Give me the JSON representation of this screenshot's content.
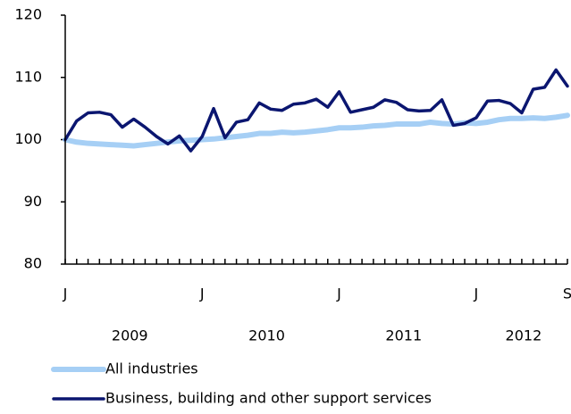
{
  "chart_data": {
    "type": "line",
    "categories": [
      "J",
      null,
      null,
      null,
      null,
      null,
      null,
      null,
      null,
      null,
      null,
      null,
      "J",
      null,
      null,
      null,
      null,
      null,
      null,
      null,
      null,
      null,
      null,
      null,
      "J",
      null,
      null,
      null,
      null,
      null,
      null,
      null,
      null,
      null,
      null,
      null,
      "J",
      null,
      null,
      null,
      null,
      null,
      null,
      null,
      "S"
    ],
    "year_labels": [
      "2009",
      "2010",
      "2011",
      "2012"
    ],
    "series": [
      {
        "name": "All industries",
        "color": "#a6cff5",
        "values": [
          100,
          99.6,
          99.4,
          99.3,
          99.2,
          99.1,
          99,
          99.2,
          99.4,
          99.6,
          99.8,
          99.9,
          100,
          100.1,
          100.3,
          100.5,
          100.7,
          101,
          101,
          101.2,
          101.1,
          101.2,
          101.4,
          101.6,
          101.9,
          101.9,
          102,
          102.2,
          102.3,
          102.5,
          102.5,
          102.5,
          102.8,
          102.6,
          102.5,
          102.7,
          102.6,
          102.8,
          103.2,
          103.4,
          103.4,
          103.5,
          103.4,
          103.6,
          103.9
        ]
      },
      {
        "name": "Business, building and other support services",
        "color": "#0b1670",
        "values": [
          100,
          103,
          104.3,
          104.4,
          104,
          102,
          103.3,
          102,
          100.5,
          99.3,
          100.6,
          98.2,
          100.5,
          105,
          100.3,
          102.8,
          103.2,
          105.9,
          104.9,
          104.7,
          105.7,
          105.9,
          106.5,
          105.2,
          107.7,
          104.4,
          104.8,
          105.2,
          106.4,
          106,
          104.8,
          104.6,
          104.7,
          106.4,
          102.3,
          102.6,
          103.5,
          106.2,
          106.3,
          105.8,
          104.3,
          108.1,
          108.4,
          111.2,
          108.6
        ]
      }
    ],
    "ylim": [
      80,
      120
    ],
    "yticks": [
      80,
      90,
      100,
      110,
      120
    ],
    "grid": false
  }
}
